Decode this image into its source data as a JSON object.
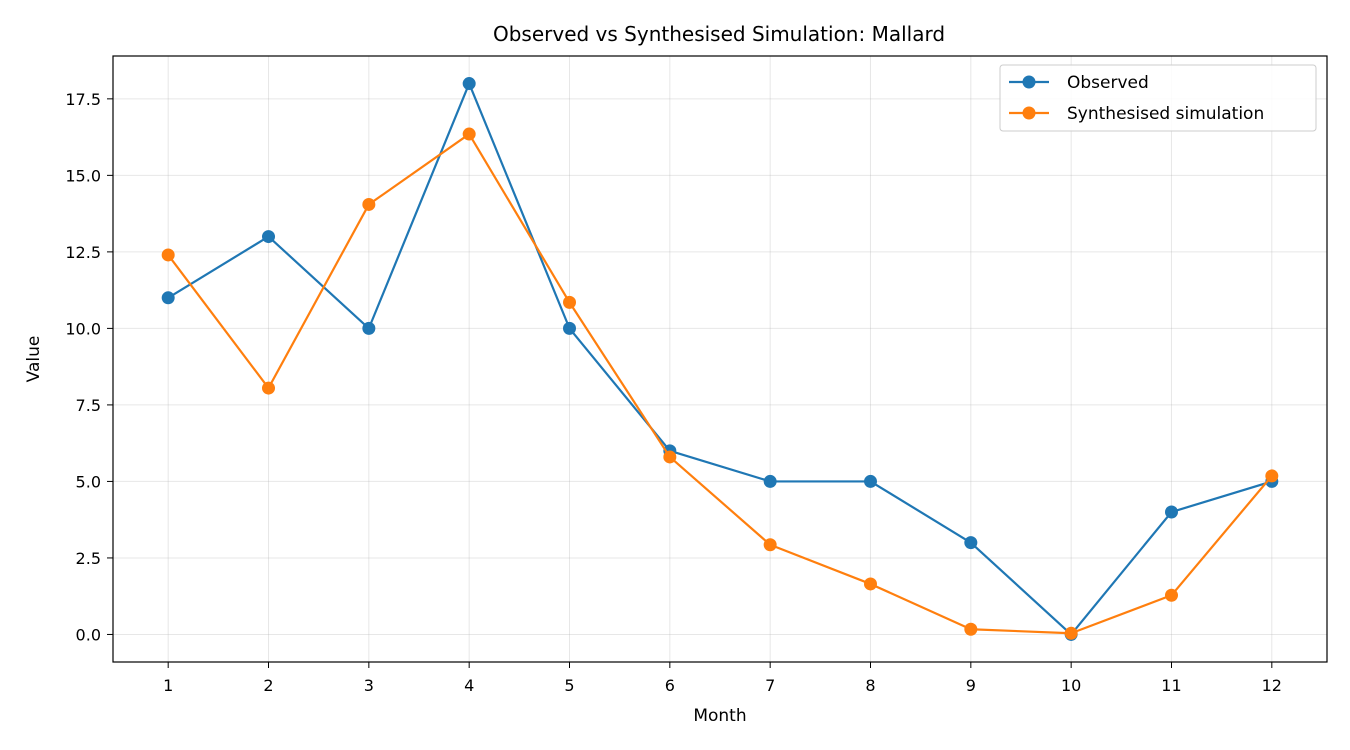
{
  "chart_data": {
    "type": "line",
    "title": "Observed vs Synthesised Simulation: Mallard",
    "xlabel": "Month",
    "ylabel": "Value",
    "x": [
      1,
      2,
      3,
      4,
      5,
      6,
      7,
      8,
      9,
      10,
      11,
      12
    ],
    "xlim": [
      0.45,
      12.55
    ],
    "ylim": [
      -0.9,
      18.9
    ],
    "xticks": [
      1,
      2,
      3,
      4,
      5,
      6,
      7,
      8,
      9,
      10,
      11,
      12
    ],
    "xtick_labels": [
      "1",
      "2",
      "3",
      "4",
      "5",
      "6",
      "7",
      "8",
      "9",
      "10",
      "11",
      "12"
    ],
    "yticks": [
      0,
      2.5,
      5,
      7.5,
      10,
      12.5,
      15,
      17.5
    ],
    "ytick_labels": [
      "0.0",
      "2.5",
      "5.0",
      "7.5",
      "10.0",
      "12.5",
      "15.0",
      "17.5"
    ],
    "grid": true,
    "legend_position": "top-right",
    "series": [
      {
        "name": "Observed",
        "color": "#1f77b4",
        "marker": "circle",
        "values": [
          11,
          13,
          10,
          18,
          10,
          6,
          5,
          5,
          3,
          0,
          4,
          5
        ]
      },
      {
        "name": "Synthesised simulation",
        "color": "#ff7f0e",
        "marker": "circle",
        "values": [
          12.4,
          8.05,
          14.05,
          16.35,
          10.85,
          5.8,
          2.93,
          1.65,
          0.17,
          0.04,
          1.28,
          5.18
        ]
      }
    ]
  }
}
